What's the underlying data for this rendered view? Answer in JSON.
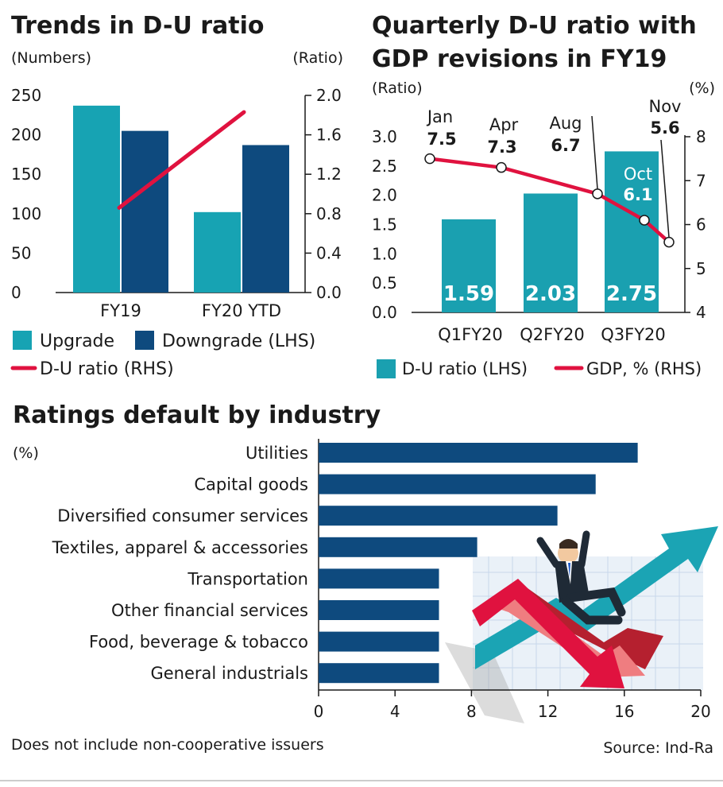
{
  "colors": {
    "upgrade": "#17a3b3",
    "downgrade": "#0e4a7e",
    "ratio_line": "#e0123f",
    "du_bar": "#1aa0b0",
    "gdp_line": "#e0123f",
    "industry_bar": "#0e4a7e",
    "text": "#1a1a1a"
  },
  "footer": {
    "note": "Does not include non-cooperative issuers",
    "source": "Source: Ind-Ra"
  },
  "chart_data": [
    {
      "type": "bar",
      "title": "Trends in D-U ratio",
      "ylabel": "(Numbers)",
      "y2label": "(Ratio)",
      "categories": [
        "FY19",
        "FY20 YTD"
      ],
      "ylim": [
        0,
        250
      ],
      "yticks": [
        0,
        50,
        100,
        150,
        200,
        250
      ],
      "y2lim": [
        0.0,
        2.0
      ],
      "y2ticks": [
        "0.0",
        "0.4",
        "0.8",
        "1.2",
        "1.6",
        "2.0"
      ],
      "series": [
        {
          "name": "Upgrade",
          "values": [
            237,
            102
          ]
        },
        {
          "name": "Downgrade (LHS)",
          "values": [
            205,
            187
          ]
        },
        {
          "name": "D-U ratio (RHS)",
          "type": "line",
          "axis": "right",
          "values": [
            0.86,
            1.83
          ]
        }
      ],
      "legend": "bottom"
    },
    {
      "type": "bar",
      "title": "Quarterly D-U ratio with GDP revisions in FY19",
      "ylabel": "(Ratio)",
      "y2label": "(%)",
      "categories": [
        "Q1FY20",
        "Q2FY20",
        "Q3FY20"
      ],
      "ylim": [
        0,
        3.0
      ],
      "yticks": [
        "0.0",
        "0.5",
        "1.0",
        "1.5",
        "2.0",
        "2.5",
        "3.0"
      ],
      "y2lim": [
        4,
        8
      ],
      "y2ticks": [
        4,
        5,
        6,
        7,
        8
      ],
      "series": [
        {
          "name": "D-U ratio (LHS)",
          "values": [
            1.59,
            2.03,
            2.75
          ],
          "labels": [
            "1.59",
            "2.03",
            "2.75"
          ]
        },
        {
          "name": "GDP, % (RHS)",
          "type": "line",
          "axis": "right",
          "points": [
            {
              "month": "Jan",
              "value": 7.5,
              "label": "7.5"
            },
            {
              "month": "Apr",
              "value": 7.3,
              "label": "7.3"
            },
            {
              "month": "Aug",
              "value": 6.7,
              "label": "6.7"
            },
            {
              "month": "Oct",
              "value": 6.1,
              "label": "6.1"
            },
            {
              "month": "Nov",
              "value": 5.6,
              "label": "5.6"
            }
          ]
        }
      ],
      "legend": "bottom"
    },
    {
      "type": "bar",
      "orientation": "horizontal",
      "title": "Ratings default by industry",
      "xlabel": "(%)",
      "categories": [
        "Utilities",
        "Capital goods",
        "Diversified consumer services",
        "Textiles, apparel & accessories",
        "Transportation",
        "Other financial services",
        "Food, beverage & tobacco",
        "General industrials"
      ],
      "values": [
        16.7,
        14.5,
        12.5,
        8.3,
        6.3,
        6.3,
        6.3,
        6.3
      ],
      "xlim": [
        0,
        20
      ],
      "xticks": [
        0,
        4,
        8,
        12,
        16,
        20
      ]
    }
  ]
}
